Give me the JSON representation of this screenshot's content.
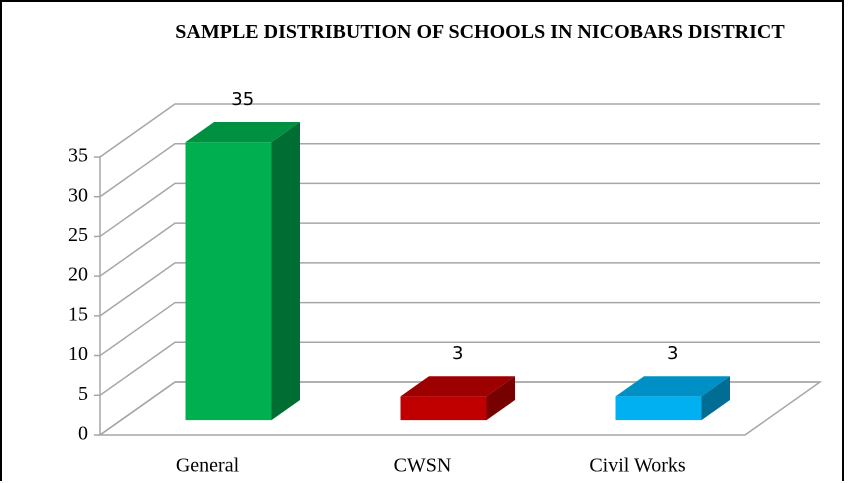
{
  "chart_data": {
    "type": "bar",
    "title": "SAMPLE DISTRIBUTION OF SCHOOLS IN NICOBARS DISTRICT",
    "categories": [
      "General",
      "CWSN",
      "Civil Works"
    ],
    "values": [
      35,
      3,
      3
    ],
    "colors": [
      "#00b050",
      "#c00000",
      "#00b0f0"
    ],
    "ylim": [
      0,
      35
    ],
    "yticks": [
      0,
      5,
      10,
      15,
      20,
      25,
      30,
      35
    ],
    "grid": true
  }
}
